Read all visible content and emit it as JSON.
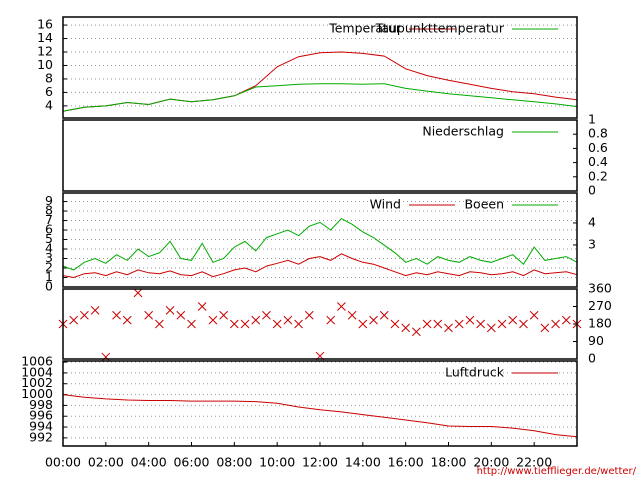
{
  "chart_data": [
    {
      "type": "line",
      "axis_side": "left",
      "grid": true,
      "x": [
        0,
        1,
        2,
        3,
        4,
        5,
        6,
        7,
        8,
        9,
        10,
        11,
        12,
        13,
        14,
        15,
        16,
        17,
        18,
        19,
        20,
        21,
        22,
        23,
        24
      ],
      "xlim": [
        0,
        24
      ],
      "ylim": [
        2.2,
        17.2
      ],
      "yticks": [
        4,
        6,
        8,
        10,
        12,
        14,
        16
      ],
      "series": [
        {
          "name": "Temperatur",
          "color": "#cc0000",
          "values": [
            3.2,
            3.8,
            4.0,
            4.5,
            4.2,
            5.0,
            4.6,
            4.9,
            5.5,
            7.0,
            9.8,
            11.3,
            11.9,
            12.0,
            11.8,
            11.4,
            9.5,
            8.5,
            7.8,
            7.2,
            6.6,
            6.1,
            5.8,
            5.3,
            4.9
          ]
        },
        {
          "name": "Taupunkttemperatur",
          "color": "#00aa00",
          "values": [
            3.2,
            3.8,
            4.0,
            4.5,
            4.2,
            5.0,
            4.6,
            4.9,
            5.5,
            6.8,
            7.0,
            7.2,
            7.3,
            7.3,
            7.2,
            7.3,
            6.6,
            6.2,
            5.8,
            5.5,
            5.2,
            4.9,
            4.6,
            4.3,
            3.9
          ]
        }
      ]
    },
    {
      "type": "line",
      "axis_side": "right",
      "grid": false,
      "x": [
        0,
        1,
        2,
        3,
        4,
        5,
        6,
        7,
        8,
        9,
        10,
        11,
        12,
        13,
        14,
        15,
        16,
        17,
        18,
        19,
        20,
        21,
        22,
        23,
        24
      ],
      "xlim": [
        0,
        24
      ],
      "ylim": [
        0,
        1
      ],
      "yticks": [
        0,
        0.2,
        0.4,
        0.6,
        0.8,
        1
      ],
      "series": [
        {
          "name": "Niederschlag",
          "color": "#00aa00",
          "values": [
            0,
            0,
            0,
            0,
            0,
            0,
            0,
            0,
            0,
            0,
            0,
            0,
            0,
            0,
            0,
            0,
            0,
            0,
            0,
            0,
            0,
            0,
            0,
            0,
            0
          ]
        }
      ]
    },
    {
      "type": "line",
      "axis_side": "left",
      "grid": true,
      "x": [
        0,
        0.5,
        1,
        1.5,
        2,
        2.5,
        3,
        3.5,
        4,
        4.5,
        5,
        5.5,
        6,
        6.5,
        7,
        7.5,
        8,
        8.5,
        9,
        9.5,
        10,
        10.5,
        11,
        11.5,
        12,
        12.5,
        13,
        13.5,
        14,
        14.5,
        15,
        15.5,
        16,
        16.5,
        17,
        17.5,
        18,
        18.5,
        19,
        19.5,
        20,
        20.5,
        21,
        21.5,
        22,
        22.5,
        23,
        23.5,
        24
      ],
      "xlim": [
        0,
        24
      ],
      "ylim": [
        0,
        9.9
      ],
      "yticks": [
        0,
        1,
        2,
        3,
        4,
        5,
        6,
        7,
        8,
        9
      ],
      "y2lim": [
        1.09,
        5.36
      ],
      "y2ticks": [
        3,
        4
      ],
      "series": [
        {
          "name": "Wind",
          "color": "#cc0000",
          "values": [
            1.2,
            1.0,
            1.4,
            1.5,
            1.2,
            1.6,
            1.3,
            1.8,
            1.5,
            1.4,
            1.7,
            1.3,
            1.2,
            1.6,
            1.1,
            1.4,
            1.8,
            2.0,
            1.6,
            2.2,
            2.5,
            2.8,
            2.4,
            3.0,
            3.2,
            2.8,
            3.5,
            3.0,
            2.6,
            2.4,
            2.0,
            1.6,
            1.2,
            1.5,
            1.3,
            1.6,
            1.4,
            1.2,
            1.6,
            1.5,
            1.3,
            1.4,
            1.6,
            1.2,
            1.8,
            1.4,
            1.5,
            1.6,
            1.3
          ]
        },
        {
          "name": "Boeen",
          "color": "#00aa00",
          "values": [
            2.2,
            1.8,
            2.6,
            3.0,
            2.5,
            3.4,
            2.8,
            4.0,
            3.2,
            3.6,
            4.8,
            3.0,
            2.8,
            4.6,
            2.6,
            3.0,
            4.2,
            4.8,
            3.8,
            5.2,
            5.6,
            6.0,
            5.4,
            6.4,
            6.8,
            6.0,
            7.2,
            6.6,
            5.8,
            5.2,
            4.4,
            3.6,
            2.6,
            3.0,
            2.4,
            3.2,
            2.8,
            2.6,
            3.2,
            2.8,
            2.6,
            3.0,
            3.4,
            2.4,
            4.2,
            2.8,
            3.0,
            3.2,
            2.6
          ]
        }
      ]
    },
    {
      "type": "scatter",
      "axis_side": "right",
      "grid": false,
      "marker_color": "#cc0000",
      "x": [
        0,
        0.5,
        1,
        1.5,
        2,
        2.5,
        3,
        3.5,
        4,
        4.5,
        5,
        5.5,
        6,
        6.5,
        7,
        7.5,
        8,
        8.5,
        9,
        9.5,
        10,
        10.5,
        11,
        11.5,
        12,
        12.5,
        13,
        13.5,
        14,
        14.5,
        15,
        15.5,
        16,
        16.5,
        17,
        17.5,
        18,
        18.5,
        19,
        19.5,
        20,
        20.5,
        21,
        21.5,
        22,
        22.5,
        23,
        23.5,
        24
      ],
      "xlim": [
        0,
        24
      ],
      "ylim": [
        0,
        360
      ],
      "yticks": [
        0,
        90,
        180,
        270,
        360
      ],
      "values": [
        180,
        200,
        225,
        250,
        10,
        225,
        200,
        340,
        225,
        180,
        250,
        225,
        180,
        270,
        200,
        225,
        180,
        180,
        200,
        225,
        180,
        200,
        180,
        225,
        15,
        200,
        270,
        225,
        180,
        200,
        225,
        180,
        160,
        140,
        180,
        180,
        160,
        180,
        200,
        180,
        160,
        180,
        200,
        180,
        225,
        160,
        180,
        200,
        180
      ]
    },
    {
      "type": "line",
      "axis_side": "left",
      "grid": true,
      "x": [
        0,
        1,
        2,
        3,
        4,
        5,
        6,
        7,
        8,
        9,
        10,
        11,
        12,
        13,
        14,
        15,
        16,
        17,
        18,
        19,
        20,
        21,
        22,
        23,
        24
      ],
      "xlim": [
        0,
        24
      ],
      "xticks": [
        {
          "value": 0,
          "label": "00:00"
        },
        {
          "value": 2,
          "label": "02:00"
        },
        {
          "value": 4,
          "label": "04:00"
        },
        {
          "value": 6,
          "label": "06:00"
        },
        {
          "value": 8,
          "label": "08:00"
        },
        {
          "value": 10,
          "label": "10:00"
        },
        {
          "value": 12,
          "label": "12:00"
        },
        {
          "value": 14,
          "label": "14:00"
        },
        {
          "value": 16,
          "label": "16:00"
        },
        {
          "value": 18,
          "label": "18:00"
        },
        {
          "value": 20,
          "label": "20:00"
        },
        {
          "value": 22,
          "label": "22:00"
        }
      ],
      "ylim": [
        990.5,
        1006.2
      ],
      "yticks": [
        992,
        994,
        996,
        998,
        1000,
        1002,
        1004,
        1006
      ],
      "series": [
        {
          "name": "Luftdruck",
          "color": "#cc0000",
          "values": [
            1000,
            999.5,
            999.2,
            999.0,
            998.9,
            998.9,
            998.8,
            998.8,
            998.8,
            998.7,
            998.4,
            997.7,
            997.2,
            996.8,
            996.3,
            995.8,
            995.3,
            994.8,
            994.2,
            994.1,
            994.1,
            993.8,
            993.3,
            992.6,
            992.2
          ]
        }
      ]
    }
  ],
  "footer": "http://www.tiefflieger.de/wetter/"
}
